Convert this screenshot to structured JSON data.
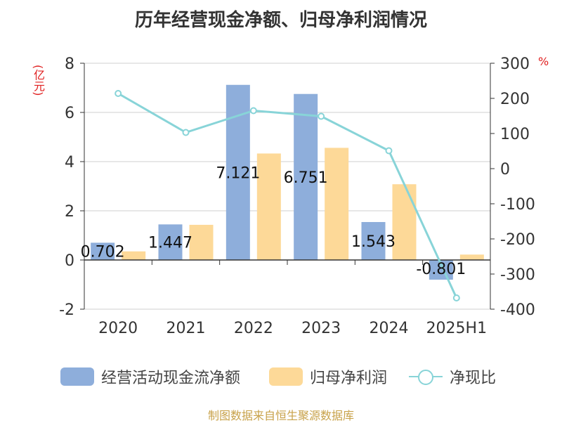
{
  "title": "历年经营现金净额、归母净利润情况",
  "left_unit": "(亿元)",
  "right_unit": "%",
  "source": "制图数据来自恒生聚源数据库",
  "colors": {
    "bar1": "#8eaedb",
    "bar2": "#fdd998",
    "line": "#88d4d8",
    "grid": "#cfcfcf",
    "axis": "#333333",
    "unit": "#e02020",
    "source": "#c8a24a"
  },
  "chart_data": {
    "type": "bar",
    "categories": [
      "2020",
      "2021",
      "2022",
      "2023",
      "2024",
      "2025H1"
    ],
    "y_left": {
      "label": "(亿元)",
      "min": -2,
      "max": 8,
      "ticks": [
        -2,
        0,
        2,
        4,
        6,
        8
      ]
    },
    "y_right": {
      "label": "%",
      "min": -400,
      "max": 300,
      "ticks": [
        -400,
        -300,
        -200,
        -100,
        0,
        100,
        200,
        300
      ]
    },
    "grid": true,
    "legend_position": "bottom",
    "series": [
      {
        "name": "经营活动现金流净额",
        "type": "bar",
        "axis": "left",
        "values": [
          0.702,
          1.447,
          7.121,
          6.751,
          1.543,
          -0.801
        ],
        "labels": [
          "0.702",
          "1.447",
          "7.121",
          "6.751",
          "1.543",
          "-0.801"
        ]
      },
      {
        "name": "归母净利润",
        "type": "bar",
        "axis": "left",
        "values": [
          0.35,
          1.43,
          4.33,
          4.56,
          3.08,
          0.22
        ]
      },
      {
        "name": "净现比",
        "type": "line",
        "axis": "right",
        "values": [
          214,
          103,
          165,
          149,
          51,
          -368
        ]
      }
    ]
  }
}
